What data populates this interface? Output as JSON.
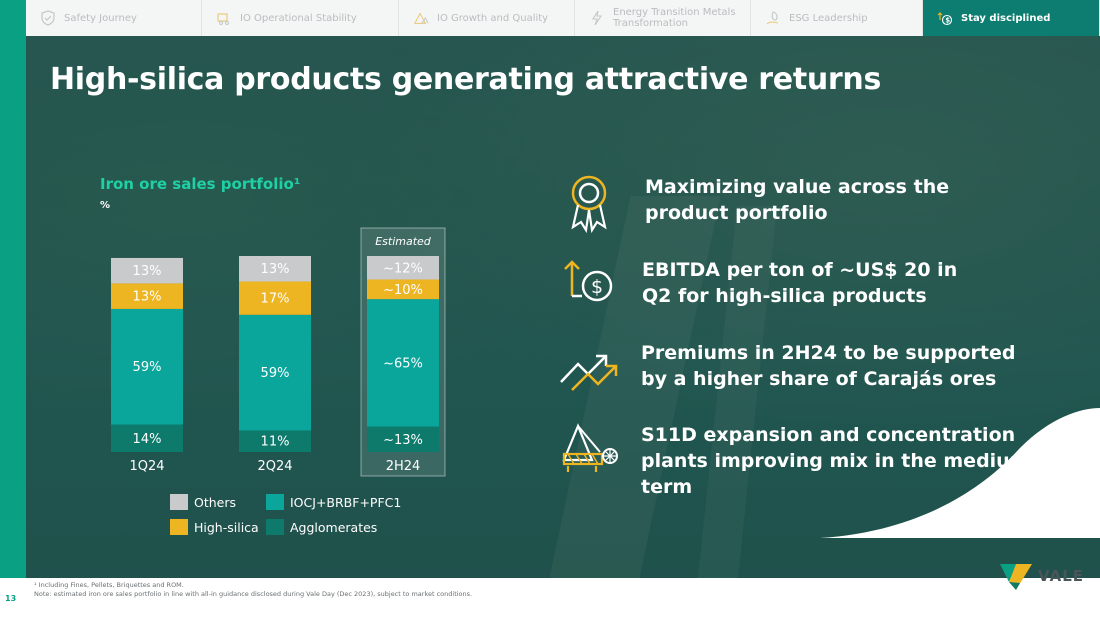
{
  "nav": {
    "tabs": [
      {
        "label": "Safety Journey",
        "icon": "shield-check-icon",
        "active": false
      },
      {
        "label": "IO Operational Stability",
        "icon": "conveyor-icon",
        "active": false
      },
      {
        "label": "IO Growth and Quality",
        "icon": "growth-triangle-icon",
        "active": false
      },
      {
        "label": "Energy Transition Metals Transformation",
        "icon": "lightning-icon",
        "active": false
      },
      {
        "label": "ESG Leadership",
        "icon": "leaf-hand-icon",
        "active": false
      },
      {
        "label": "Stay disciplined",
        "icon": "dollar-arrow-icon",
        "active": true
      }
    ]
  },
  "title": "High-silica products generating attractive returns",
  "chart": {
    "title": "Iron ore sales portfolio¹",
    "unit": "%",
    "estimated_label": "Estimated"
  },
  "chart_data": {
    "type": "bar",
    "stacked": true,
    "categories": [
      "1Q24",
      "2Q24",
      "2H24"
    ],
    "series": [
      {
        "name": "Agglomerates",
        "values": [
          14,
          11,
          13
        ],
        "labels": [
          "14%",
          "11%",
          "~13%"
        ],
        "color": "#0d7a6c"
      },
      {
        "name": "IOCJ+BRBF+PFC1",
        "values": [
          59,
          59,
          65
        ],
        "labels": [
          "59%",
          "59%",
          "~65%"
        ],
        "color": "#0aa69b"
      },
      {
        "name": "High-silica",
        "values": [
          13,
          17,
          10
        ],
        "labels": [
          "13%",
          "17%",
          "~10%"
        ],
        "color": "#eeb522"
      },
      {
        "name": "Others",
        "values": [
          13,
          13,
          12
        ],
        "labels": [
          "13%",
          "13%",
          "~12%"
        ],
        "color": "#c8cacb"
      }
    ],
    "estimated_category": "2H24",
    "ylim": [
      0,
      100
    ]
  },
  "legend": [
    {
      "label": "Others",
      "color": "#c8cacb"
    },
    {
      "label": "IOCJ+BRBF+PFC1",
      "color": "#0aa69b"
    },
    {
      "label": "High-silica",
      "color": "#eeb522"
    },
    {
      "label": "Agglomerates",
      "color": "#0d7a6c"
    }
  ],
  "bullets": [
    {
      "text": "Maximizing value across the product portfolio",
      "icon": "award-ribbon-icon"
    },
    {
      "text": "EBITDA per ton of ~US$ 20 in Q2 for high-silica products",
      "icon": "dollar-arrow-up-icon"
    },
    {
      "text": "Premiums in 2H24 to be supported by a higher share of Carajás ores",
      "icon": "trend-up-icon"
    },
    {
      "text": "S11D expansion and concentration plants improving mix in the medium-term",
      "icon": "reclaimer-icon"
    }
  ],
  "footer": {
    "note1": "¹ Including Fines, Pellets, Briquettes and ROM.",
    "note2": "Note: estimated iron ore sales portfolio in line with all-in guidance disclosed during Vale Day (Dec 2023), subject to market conditions."
  },
  "page_number": "13",
  "logo": {
    "text": "VALE"
  },
  "colors": {
    "accent": "#0aa084",
    "gold": "#eeb522",
    "chart_title": "#1fd0a4"
  }
}
